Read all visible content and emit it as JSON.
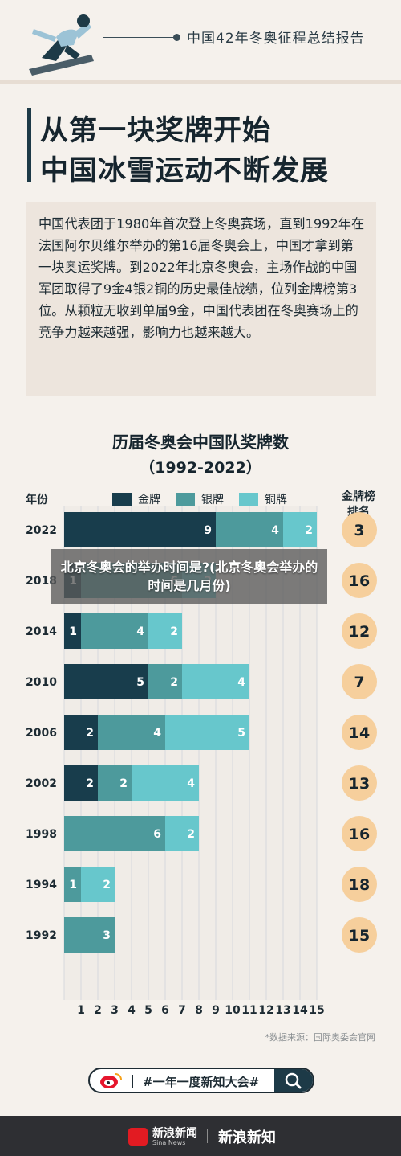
{
  "header": {
    "title": "中国42年冬奥征程总结报告"
  },
  "headline": {
    "line1": "从第一块奖牌开始",
    "line2": "中国冰雪运动不断发展"
  },
  "intro": {
    "text": "中国代表团于1980年首次登上冬奥赛场，直到1992年在法国阿尔贝维尔举办的第16届冬奥会上，中国才拿到第一块奥运奖牌。到2022年北京冬奥会，主场作战的中国军团取得了9金4银2铜的历史最佳战绩，位列金牌榜第3位。从颗粒无收到单届9金，中国代表团在冬奥赛场上的竞争力越来越强，影响力也越来越大。"
  },
  "chart_data": {
    "type": "bar",
    "orientation": "horizontal",
    "stacked": true,
    "title": "历届冬奥会中国队奖牌数",
    "subtitle": "（1992-2022）",
    "ylabel": "年份",
    "rank_label": "金牌榜排名",
    "categories": [
      "2022",
      "2018",
      "2014",
      "2010",
      "2006",
      "2002",
      "1998",
      "1994",
      "1992"
    ],
    "series": [
      {
        "name": "金牌",
        "color": "#183d4c",
        "values": [
          9,
          1,
          1,
          5,
          2,
          2,
          0,
          0,
          0
        ]
      },
      {
        "name": "银牌",
        "color": "#4d9a9c",
        "values": [
          4,
          6,
          4,
          2,
          4,
          2,
          6,
          1,
          3
        ]
      },
      {
        "name": "铜牌",
        "color": "#67c7cc",
        "values": [
          2,
          2,
          2,
          4,
          5,
          4,
          2,
          2,
          0
        ]
      }
    ],
    "ranks": [
      3,
      16,
      12,
      7,
      14,
      13,
      16,
      18,
      15
    ],
    "xticks": [
      1,
      2,
      3,
      4,
      5,
      6,
      7,
      8,
      9,
      10,
      11,
      12,
      13,
      14,
      15
    ],
    "xlim": [
      0,
      15
    ],
    "grid": true,
    "legend": "top"
  },
  "source": "*数据来源：国际奥委会官网",
  "tag": {
    "text": "#一年一度新知大会#"
  },
  "footer": {
    "logo_cn": "新浪新闻",
    "logo_en": "Sina News",
    "brand": "新浪新知"
  },
  "overlay": {
    "text": "北京冬奥会的举办时间是?(北京冬奥会举办的时间是几月份)"
  }
}
